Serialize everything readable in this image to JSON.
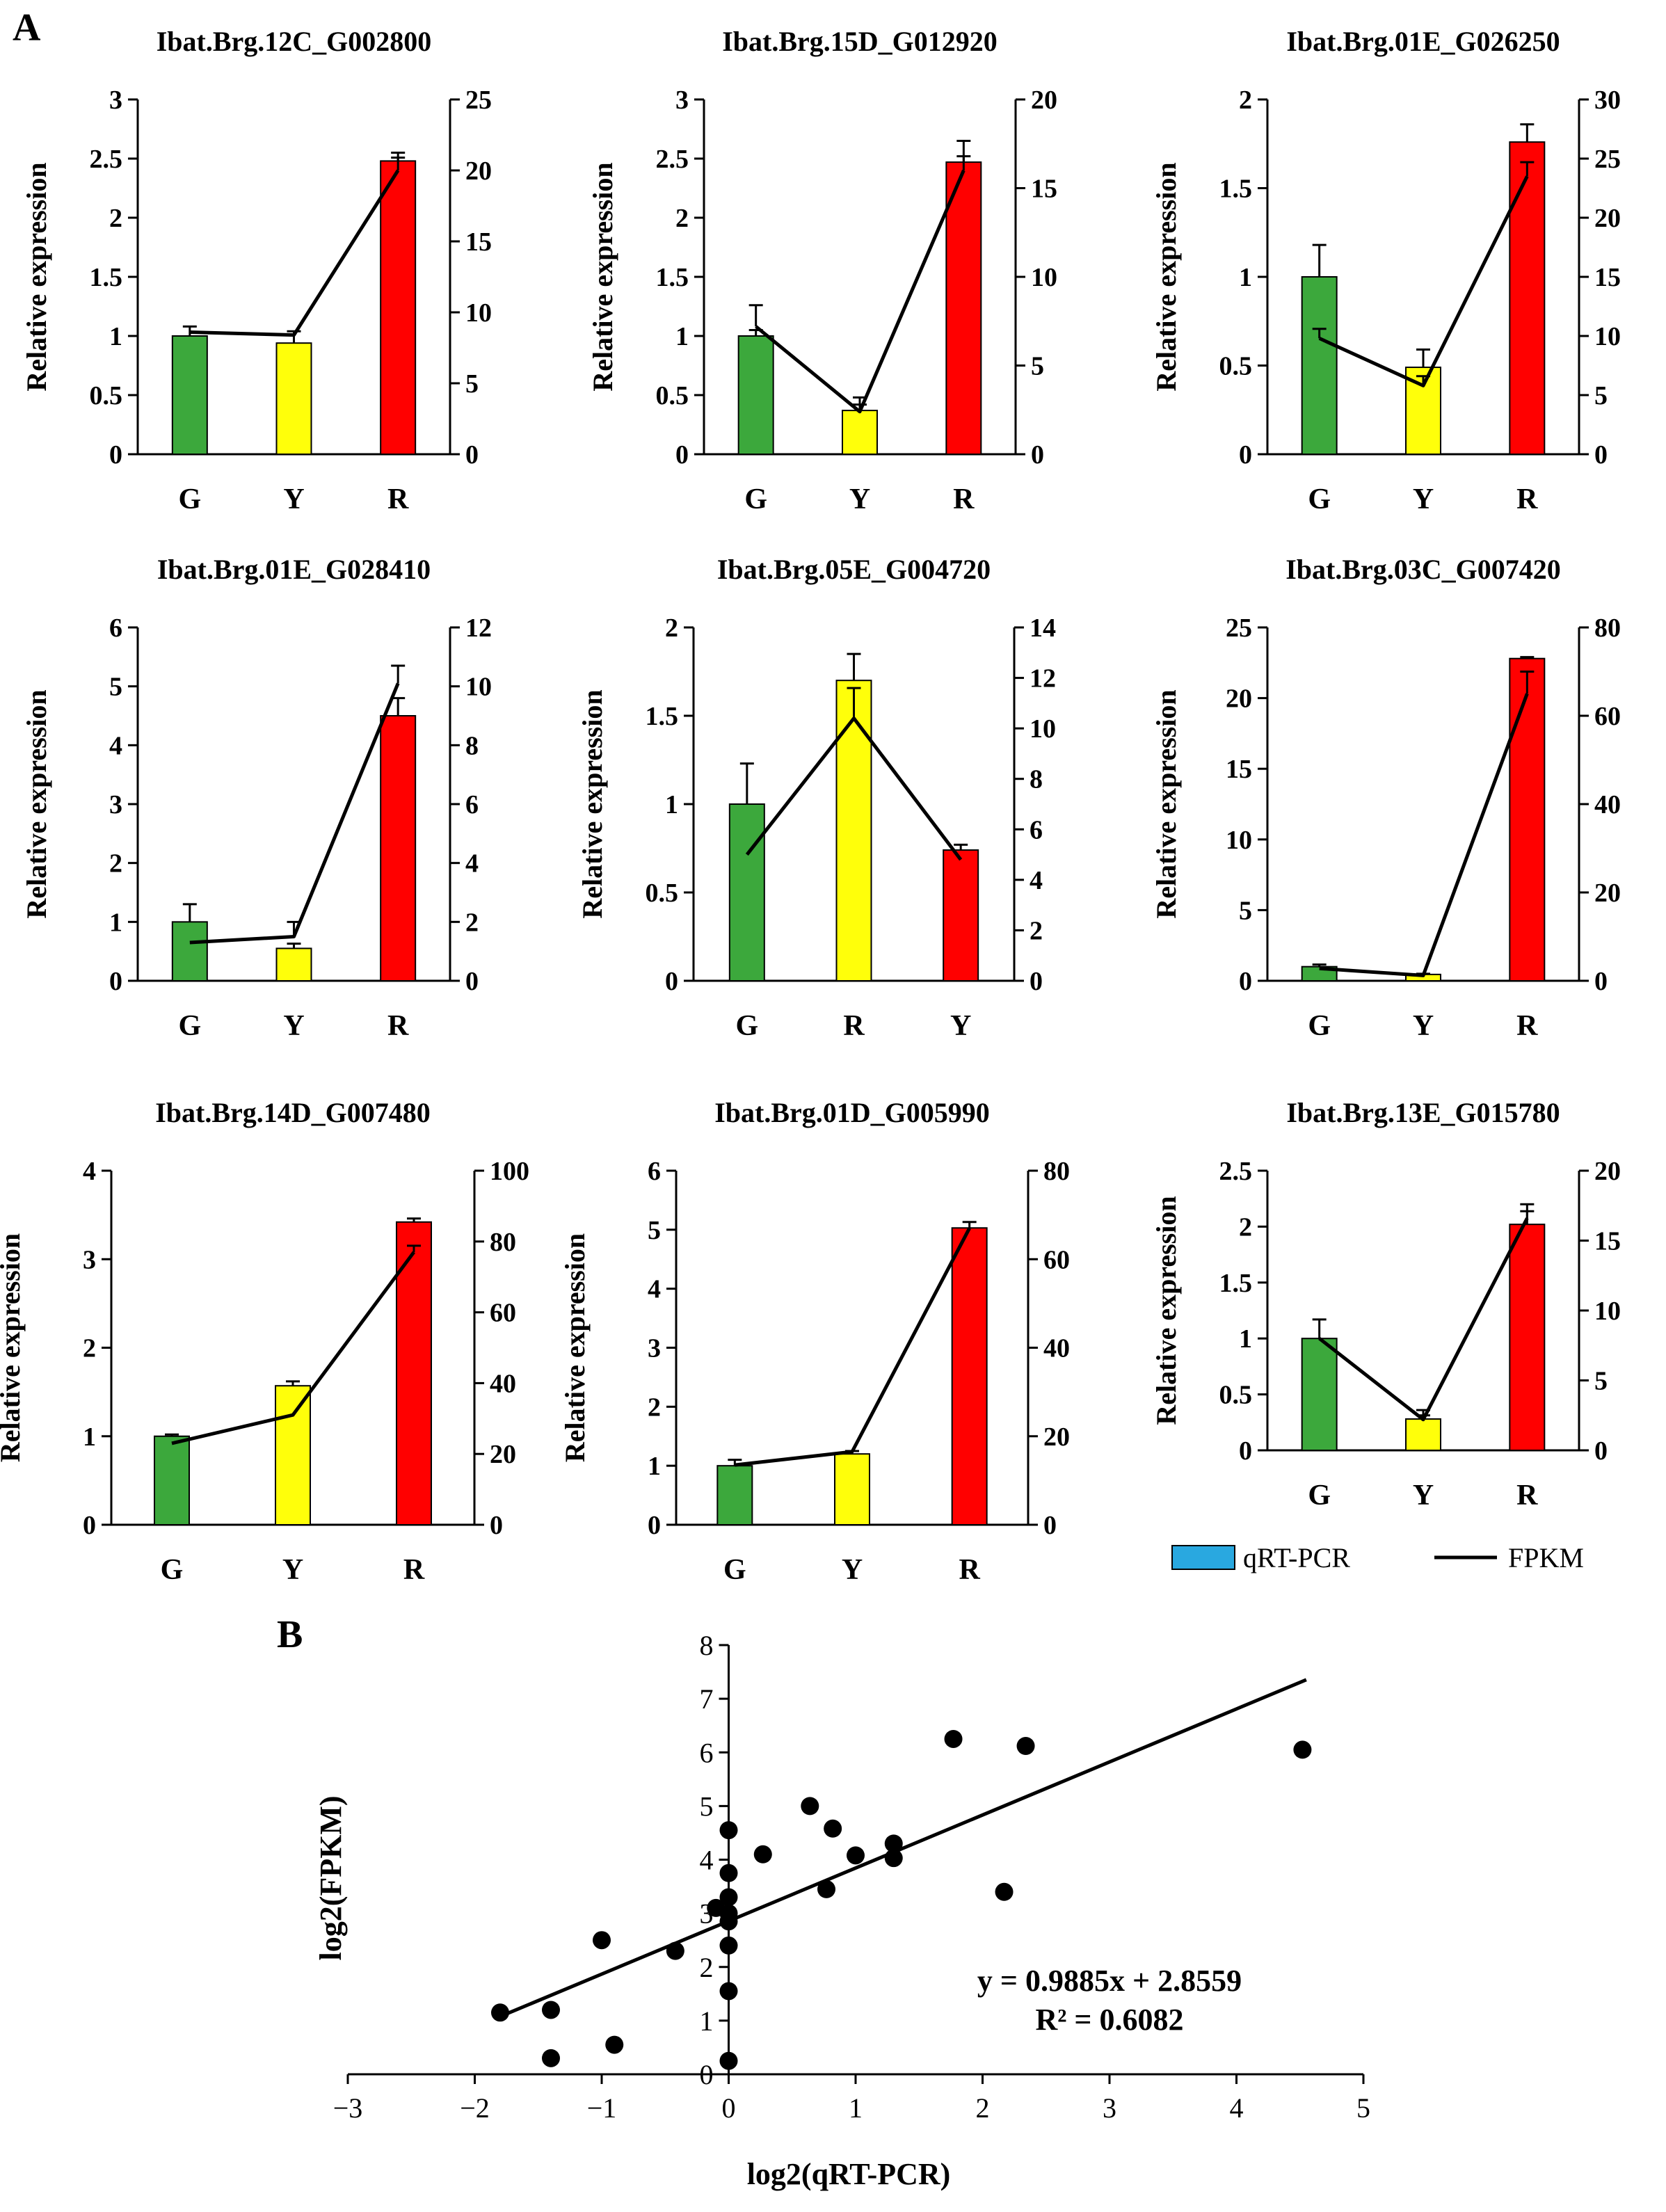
{
  "panels": {
    "a_label": "A",
    "b_label": "B"
  },
  "colors": {
    "G": "#3ca83c",
    "Y": "#ffff0a",
    "R": "#ff0000",
    "legend_bar": "#29a8e0",
    "line": "#000000"
  },
  "legend": {
    "bar_label": "qRT-PCR",
    "line_label": "FPKM"
  },
  "chart_data": [
    {
      "type": "bar",
      "title": "Ibat.Brg.12C_G002800",
      "ylabel": "Relative expression",
      "categories": [
        "G",
        "Y",
        "R"
      ],
      "series": [
        {
          "name": "qRT-PCR",
          "axis": "left",
          "values": [
            1.0,
            0.94,
            2.48
          ],
          "errors": [
            0.08,
            0.1,
            0.07
          ],
          "colors": [
            "G",
            "Y",
            "R"
          ]
        },
        {
          "name": "FPKM",
          "axis": "right",
          "values": [
            8.6,
            8.4,
            20.0
          ],
          "errors": [
            0,
            0,
            0.9
          ]
        }
      ],
      "left_axis": {
        "max": 3,
        "step": 0.5,
        "ticks": [
          "0",
          "0.5",
          "1",
          "1.5",
          "2",
          "2.5",
          "3"
        ]
      },
      "right_axis": {
        "max": 25,
        "step": 5,
        "ticks": [
          "0",
          "5",
          "10",
          "15",
          "20",
          "25"
        ]
      }
    },
    {
      "type": "bar",
      "title": "Ibat.Brg.15D_G012920",
      "ylabel": "Relative expression",
      "categories": [
        "G",
        "Y",
        "R"
      ],
      "series": [
        {
          "name": "qRT-PCR",
          "axis": "left",
          "values": [
            1.0,
            0.37,
            2.47
          ],
          "errors": [
            0.05,
            0.05,
            0.18
          ],
          "colors": [
            "G",
            "Y",
            "R"
          ]
        },
        {
          "name": "FPKM",
          "axis": "right",
          "values": [
            7.2,
            2.4,
            16.0
          ],
          "errors": [
            1.2,
            0.8,
            0.8
          ]
        }
      ],
      "left_axis": {
        "max": 3,
        "step": 0.5,
        "ticks": [
          "0",
          "0.5",
          "1",
          "1.5",
          "2",
          "2.5",
          "3"
        ]
      },
      "right_axis": {
        "max": 20,
        "step": 5,
        "ticks": [
          "0",
          "5",
          "10",
          "15",
          "20"
        ]
      }
    },
    {
      "type": "bar",
      "title": "Ibat.Brg.01E_G026250",
      "ylabel": "Relative expression",
      "categories": [
        "G",
        "Y",
        "R"
      ],
      "series": [
        {
          "name": "qRT-PCR",
          "axis": "left",
          "values": [
            1.0,
            0.49,
            1.76
          ],
          "errors": [
            0.18,
            0.1,
            0.1
          ],
          "colors": [
            "G",
            "Y",
            "R"
          ]
        },
        {
          "name": "FPKM",
          "axis": "right",
          "values": [
            9.8,
            5.8,
            23.5
          ],
          "errors": [
            0.8,
            0.8,
            1.2
          ]
        }
      ],
      "left_axis": {
        "max": 2,
        "step": 0.5,
        "ticks": [
          "0",
          "0.5",
          "1",
          "1.5",
          "2"
        ]
      },
      "right_axis": {
        "max": 30,
        "step": 5,
        "ticks": [
          "0",
          "5",
          "10",
          "15",
          "20",
          "25",
          "30"
        ]
      }
    },
    {
      "type": "bar",
      "title": "Ibat.Brg.01E_G028410",
      "ylabel": "Relative expression",
      "categories": [
        "G",
        "Y",
        "R"
      ],
      "series": [
        {
          "name": "qRT-PCR",
          "axis": "left",
          "values": [
            1.0,
            0.55,
            4.5
          ],
          "errors": [
            0.3,
            0.08,
            0.3
          ],
          "colors": [
            "G",
            "Y",
            "R"
          ]
        },
        {
          "name": "FPKM",
          "axis": "right",
          "values": [
            1.3,
            1.5,
            10.1
          ],
          "errors": [
            0,
            0.5,
            0.6
          ]
        }
      ],
      "left_axis": {
        "max": 6,
        "step": 1,
        "ticks": [
          "0",
          "1",
          "2",
          "3",
          "4",
          "5",
          "6"
        ]
      },
      "right_axis": {
        "max": 12,
        "step": 2,
        "ticks": [
          "0",
          "2",
          "4",
          "6",
          "8",
          "10",
          "12"
        ]
      }
    },
    {
      "type": "bar",
      "title": "Ibat.Brg.05E_G004720",
      "ylabel": "Relative expression",
      "categories": [
        "G",
        "R",
        "Y"
      ],
      "series": [
        {
          "name": "qRT-PCR",
          "axis": "left",
          "values": [
            1.0,
            1.7,
            0.74
          ],
          "errors": [
            0.23,
            0.15,
            0.03
          ],
          "colors": [
            "G",
            "Y",
            "R"
          ]
        },
        {
          "name": "FPKM",
          "axis": "right",
          "values": [
            5.0,
            10.4,
            4.8
          ],
          "errors": [
            0,
            1.2,
            0
          ]
        }
      ],
      "left_axis": {
        "max": 2,
        "step": 0.5,
        "ticks": [
          "0",
          "0.5",
          "1",
          "1.5",
          "2"
        ]
      },
      "right_axis": {
        "max": 14,
        "step": 2,
        "ticks": [
          "0",
          "2",
          "4",
          "6",
          "8",
          "10",
          "12",
          "14"
        ]
      }
    },
    {
      "type": "bar",
      "title": "Ibat.Brg.03C_G007420",
      "ylabel": "Relative expression",
      "categories": [
        "G",
        "Y",
        "R"
      ],
      "series": [
        {
          "name": "qRT-PCR",
          "axis": "left",
          "values": [
            1.0,
            0.45,
            22.8
          ],
          "errors": [
            0.15,
            0.05,
            0.1
          ],
          "colors": [
            "G",
            "Y",
            "R"
          ]
        },
        {
          "name": "FPKM",
          "axis": "right",
          "values": [
            2.8,
            1.2,
            65.0
          ],
          "errors": [
            0,
            0,
            5.0
          ]
        }
      ],
      "left_axis": {
        "max": 25,
        "step": 5,
        "ticks": [
          "0",
          "5",
          "10",
          "15",
          "20",
          "25"
        ]
      },
      "right_axis": {
        "max": 80,
        "step": 20,
        "ticks": [
          "0",
          "20",
          "40",
          "60",
          "80"
        ]
      }
    },
    {
      "type": "bar",
      "title": "Ibat.Brg.14D_G007480",
      "ylabel": "Relative expression",
      "categories": [
        "G",
        "Y",
        "R"
      ],
      "series": [
        {
          "name": "qRT-PCR",
          "axis": "left",
          "values": [
            1.0,
            1.57,
            3.42
          ],
          "errors": [
            0.02,
            0.05,
            0.04
          ],
          "colors": [
            "G",
            "Y",
            "R"
          ]
        },
        {
          "name": "FPKM",
          "axis": "right",
          "values": [
            23.0,
            31.0,
            77.0
          ],
          "errors": [
            0,
            0,
            1.8
          ]
        }
      ],
      "left_axis": {
        "max": 4,
        "step": 1,
        "ticks": [
          "0",
          "1",
          "2",
          "3",
          "4"
        ]
      },
      "right_axis": {
        "max": 100,
        "step": 20,
        "ticks": [
          "0",
          "20",
          "40",
          "60",
          "80",
          "100"
        ]
      }
    },
    {
      "type": "bar",
      "title": "Ibat.Brg.01D_G005990",
      "ylabel": "Relative expression",
      "categories": [
        "G",
        "Y",
        "R"
      ],
      "series": [
        {
          "name": "qRT-PCR",
          "axis": "left",
          "values": [
            1.0,
            1.2,
            5.03
          ],
          "errors": [
            0.1,
            0.05,
            0.1
          ],
          "colors": [
            "G",
            "Y",
            "R"
          ]
        },
        {
          "name": "FPKM",
          "axis": "right",
          "values": [
            13.5,
            16.5,
            67.0
          ],
          "errors": [
            0,
            0,
            0
          ]
        }
      ],
      "left_axis": {
        "max": 6,
        "step": 1,
        "ticks": [
          "0",
          "1",
          "2",
          "3",
          "4",
          "5",
          "6"
        ]
      },
      "right_axis": {
        "max": 80,
        "step": 20,
        "ticks": [
          "0",
          "20",
          "40",
          "60",
          "80"
        ]
      }
    },
    {
      "type": "bar",
      "title": "Ibat.Brg.13E_G015780",
      "ylabel": "Relative expression",
      "categories": [
        "G",
        "Y",
        "R"
      ],
      "series": [
        {
          "name": "qRT-PCR",
          "axis": "left",
          "values": [
            1.0,
            0.28,
            2.02
          ],
          "errors": [
            0.17,
            0.08,
            0.18
          ],
          "colors": [
            "G",
            "Y",
            "R"
          ]
        },
        {
          "name": "FPKM",
          "axis": "right",
          "values": [
            8.0,
            2.2,
            16.6
          ],
          "errors": [
            0,
            0.3,
            0.5
          ]
        }
      ],
      "left_axis": {
        "max": 2.5,
        "step": 0.5,
        "ticks": [
          "0",
          "0.5",
          "1",
          "1.5",
          "2",
          "2.5"
        ]
      },
      "right_axis": {
        "max": 20,
        "step": 5,
        "ticks": [
          "0",
          "5",
          "10",
          "15",
          "20"
        ]
      }
    },
    {
      "type": "scatter",
      "title": "",
      "xlabel": "log2(qRT-PCR)",
      "ylabel": "log2(FPKM)",
      "xlim": [
        -3,
        5
      ],
      "ylim": [
        0,
        8
      ],
      "x_ticks": [
        "−3",
        "−2",
        "−1",
        "0",
        "1",
        "2",
        "3",
        "4",
        "5"
      ],
      "y_ticks": [
        "0",
        "1",
        "2",
        "3",
        "4",
        "5",
        "6",
        "7",
        "8"
      ],
      "points": [
        [
          -1.8,
          1.15
        ],
        [
          -1.4,
          1.2
        ],
        [
          -1.4,
          0.3
        ],
        [
          -1.0,
          2.5
        ],
        [
          -0.9,
          0.55
        ],
        [
          -0.42,
          2.3
        ],
        [
          -0.1,
          3.1
        ],
        [
          0.0,
          4.55
        ],
        [
          0.0,
          3.75
        ],
        [
          0.0,
          3.3
        ],
        [
          0.0,
          3.0
        ],
        [
          0.0,
          2.85
        ],
        [
          0.0,
          2.4
        ],
        [
          0.0,
          1.55
        ],
        [
          0.0,
          0.25
        ],
        [
          0.27,
          4.1
        ],
        [
          0.64,
          5.0
        ],
        [
          0.77,
          3.45
        ],
        [
          0.82,
          4.58
        ],
        [
          1.0,
          4.08
        ],
        [
          1.3,
          4.3
        ],
        [
          1.3,
          4.03
        ],
        [
          1.77,
          6.25
        ],
        [
          2.17,
          3.4
        ],
        [
          2.34,
          6.12
        ],
        [
          4.52,
          6.05
        ]
      ],
      "trendline": {
        "slope": 0.9885,
        "intercept": 2.8559,
        "x_from": -1.8,
        "x_to": 4.55
      },
      "equation": "y = 0.9885x + 2.8559",
      "r_squared": "R² = 0.6082"
    }
  ]
}
